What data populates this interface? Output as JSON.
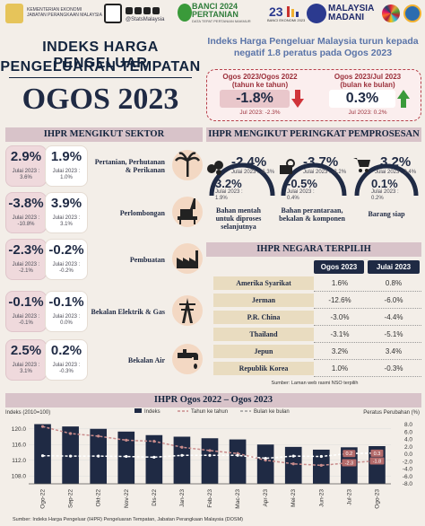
{
  "header": {
    "agency_line1": "KEMENTERIAN EKONOMI",
    "agency_line2": "JABATAN PERANGKAAN MALAYSIA",
    "social": "@StatsMalaysia",
    "banci_line1": "BANCI 2024",
    "banci_line2": "PERTANIAN",
    "banci_tag": "DATA TEPAT PERTANIAN MAKMUR",
    "ekonomi_tag": "BANCI EKONOMI 2023",
    "madani_line1": "MALAYSIA",
    "madani_line2": "MADANI"
  },
  "title": {
    "line1": "INDEKS HARGA PENGELUAR",
    "line2": "PENGELUARAN TEMPATAN",
    "period": "OGOS 2023"
  },
  "headline": "Indeks Harga Pengeluar Malaysia turun kepada negatif 1.8 peratus pada Ogos 2023",
  "headline_cards": [
    {
      "label": "Ogos 2023/Ogos 2022",
      "sub": "(tahun ke tahun)",
      "value": "-1.8%",
      "direction": "down",
      "note": "Jul 2023: -2.3%"
    },
    {
      "label": "Ogos 2023/Jul 2023",
      "sub": "(bulan ke bulan)",
      "value": "0.3%",
      "direction": "up",
      "note": "Jul 2023: 0.2%"
    }
  ],
  "sections": {
    "sector": "IHPR MENGIKUT SEKTOR",
    "stage": "IHPR MENGIKUT PERINGKAT PEMPROSESAN",
    "country": "IHPR NEGARA TERPILIH",
    "chart": "IHPR Ogos 2022 – Ogos 2023"
  },
  "sectors": [
    {
      "yoy": "2.9%",
      "yoy_jul": "Julai 2023 :\n3.6%",
      "mom": "1.9%",
      "mom_jul": "Julai 2023 :\n1.0%",
      "label": "Pertanian, Perhutanan & Perikanan",
      "icon": "palm-tree-icon"
    },
    {
      "yoy": "-3.8%",
      "yoy_jul": "Julai 2023 :\n-10.8%",
      "mom": "3.9%",
      "mom_jul": "Julai 2023 :\n3.1%",
      "label": "Perlombongan",
      "icon": "oil-rig-icon"
    },
    {
      "yoy": "-2.3%",
      "yoy_jul": "Julai 2023 :\n-2.1%",
      "mom": "-0.2%",
      "mom_jul": "Julai 2023 :\n-0.2%",
      "label": "Pembuatan",
      "icon": "factory-icon"
    },
    {
      "yoy": "-0.1%",
      "yoy_jul": "Julai 2023 :\n-0.1%",
      "mom": "-0.1%",
      "mom_jul": "Julai 2023 :\n0.0%",
      "label": "Bekalan Elektrik & Gas",
      "icon": "power-tower-icon"
    },
    {
      "yoy": "2.5%",
      "yoy_jul": "Julai 2023 :\n3.1%",
      "mom": "0.2%",
      "mom_jul": "Julai 2023 :\n-0.3%",
      "label": "Bekalan Air",
      "icon": "water-tap-icon"
    }
  ],
  "stages": [
    {
      "yoy": "-2.4%",
      "yoy_jul": "Julai 2023 : -6.3%",
      "mom": "3.2%",
      "mom_jul": "Julai 2023 :\n1.9%",
      "label": "Bahan mentah untuk diproses selanjutnya",
      "icon": "raw-material-icon"
    },
    {
      "yoy": "-3.7%",
      "yoy_jul": "Julai 2023 : -3.2%",
      "mom": "-0.5%",
      "mom_jul": "Julai 2023 :\n0.4%",
      "label": "Bahan perantaraan, bekalan & komponen",
      "icon": "gears-icon"
    },
    {
      "yoy": "3.2%",
      "yoy_jul": "Julai 2023 : 3.4%",
      "mom": "0.1%",
      "mom_jul": "Julai 2023 :\n0.2%",
      "label": "Barang siap",
      "icon": "shopping-cart-icon"
    }
  ],
  "country_table": {
    "col1": "Ogos 2023",
    "col2": "Julai 2023",
    "rows": [
      {
        "country": "Amerika Syarikat",
        "aug": "1.6%",
        "jul": "0.8%"
      },
      {
        "country": "Jerman",
        "aug": "-12.6%",
        "jul": "-6.0%"
      },
      {
        "country": "P.R. China",
        "aug": "-3.0%",
        "jul": "-4.4%"
      },
      {
        "country": "Thailand",
        "aug": "-3.1%",
        "jul": "-5.1%"
      },
      {
        "country": "Jepun",
        "aug": "3.2%",
        "jul": "3.4%"
      },
      {
        "country": "Republik Korea",
        "aug": "1.0%",
        "jul": "-0.3%"
      }
    ],
    "source": "Sumber: Laman web rasmi NSO terpilih"
  },
  "chart_data": {
    "type": "bar",
    "title": "IHPR Ogos 2022 – Ogos 2023",
    "ylabel_left": "Indeks (2010=100)",
    "ylabel_right": "Peratus Perubahan (%)",
    "categories": [
      "Ogo-22",
      "Sep-22",
      "Okt-22",
      "Nov-22",
      "Dis-22",
      "Jan-23",
      "Feb-23",
      "Mac-23",
      "Apr-23",
      "Mei-23",
      "Jun-23",
      "Jul-23",
      "Ogo-23"
    ],
    "y_left_ticks": [
      "120.0",
      "116.0",
      "112.0",
      "108.0"
    ],
    "ylim_left": [
      106,
      122
    ],
    "y_right_ticks": [
      "8.0",
      "6.0",
      "4.0",
      "2.0",
      "0.0",
      "-2.0",
      "-4.0",
      "-6.0",
      "-8.0"
    ],
    "ylim_right": [
      -8,
      9
    ],
    "series": [
      {
        "name": "Indeks",
        "kind": "bar",
        "color": "#1f2a44",
        "values": [
          121.2,
          120.6,
          120.0,
          119.3,
          118.4,
          118.0,
          117.6,
          117.3,
          116.0,
          115.4,
          114.7,
          115.3,
          115.6
        ]
      },
      {
        "name": "Tahun ke tahun",
        "kind": "line",
        "color": "#c98c8c",
        "values": [
          7.5,
          5.6,
          4.9,
          3.8,
          3.5,
          1.9,
          1.0,
          0.2,
          -1.6,
          -2.6,
          -3.0,
          -2.3,
          -1.8
        ]
      },
      {
        "name": "Bulan ke bulan",
        "kind": "line",
        "color": "#ffffff",
        "values": [
          -0.4,
          -0.5,
          -0.5,
          -0.6,
          -0.8,
          -0.3,
          -0.3,
          -0.3,
          -1.1,
          -0.5,
          -0.6,
          0.2,
          0.3
        ]
      }
    ],
    "point_labels": {
      "Jul-23": [
        "0.2",
        "-2.3"
      ],
      "Ogo-23": [
        "0.3",
        "-1.8"
      ]
    },
    "legend_position": "top"
  },
  "footer_source": "Sumber: Indeks Harga Pengeluar (IHPR) Pengeluaran Tempatan, Jabatan Perangkaan Malaysia (DOSM)",
  "colors": {
    "navy": "#1f2a44",
    "rose": "#efd9dc",
    "section": "#d8c3c9",
    "down": "#d0343a",
    "up": "#3a9a3a"
  }
}
